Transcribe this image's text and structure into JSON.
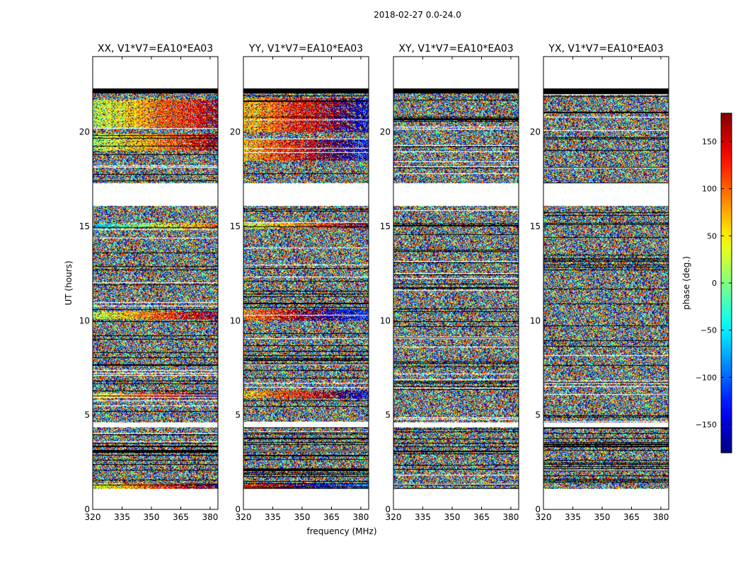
{
  "chart_data": {
    "type": "heatmap",
    "suptitle": "2018-02-27 0.0-24.0",
    "xlabel": "frequency (MHz)",
    "ylabel": "UT (hours)",
    "xlim": [
      320,
      384
    ],
    "ylim": [
      0,
      24
    ],
    "xticks": [
      320,
      335,
      350,
      365,
      380
    ],
    "yticks": [
      0,
      5,
      10,
      15,
      20
    ],
    "data_extent_hours": [
      1.1,
      22.3
    ],
    "panels": [
      {
        "title": "XX, V1*V7=EA10*EA03",
        "polarization": "XX",
        "coherent_bands": [
          [
            20.2,
            21.7,
            10
          ],
          [
            19.0,
            19.9,
            5
          ],
          [
            14.9,
            15.2,
            -60
          ],
          [
            10.1,
            10.5,
            20
          ],
          [
            5.9,
            6.2,
            40
          ],
          [
            1.1,
            1.4,
            30
          ]
        ]
      },
      {
        "title": "YY, V1*V7=EA10*EA03",
        "polarization": "YY",
        "coherent_bands": [
          [
            20.0,
            21.8,
            60
          ],
          [
            18.5,
            19.6,
            70
          ],
          [
            14.9,
            15.2,
            20
          ],
          [
            10.0,
            10.6,
            90
          ],
          [
            5.9,
            6.3,
            60
          ],
          [
            1.1,
            1.4,
            120
          ]
        ]
      },
      {
        "title": "XY, V1*V7=EA10*EA03",
        "polarization": "XY",
        "coherent_bands": []
      },
      {
        "title": "YX, V1*V7=EA10*EA03",
        "polarization": "YX",
        "coherent_bands": []
      }
    ],
    "flagged_gaps_hours": [
      [
        22.05,
        22.3
      ],
      [
        17.1,
        17.3
      ],
      [
        16.1,
        17.1
      ],
      [
        4.35,
        4.6
      ],
      [
        1.0,
        1.1
      ],
      [
        0,
        1.1
      ],
      [
        22.3,
        24
      ]
    ],
    "colorbar": {
      "label": "phase (deg.)",
      "range": [
        -180,
        180
      ],
      "ticks": [
        150,
        100,
        50,
        0,
        -50,
        -100,
        -150
      ],
      "tick_labels": [
        "150",
        "100",
        "50",
        "0",
        "−50",
        "−100",
        "−150"
      ],
      "colormap": "jet"
    },
    "colors": {
      "flagged": "#ffffff",
      "dead_row": "#000000",
      "axes": "#000000"
    }
  }
}
